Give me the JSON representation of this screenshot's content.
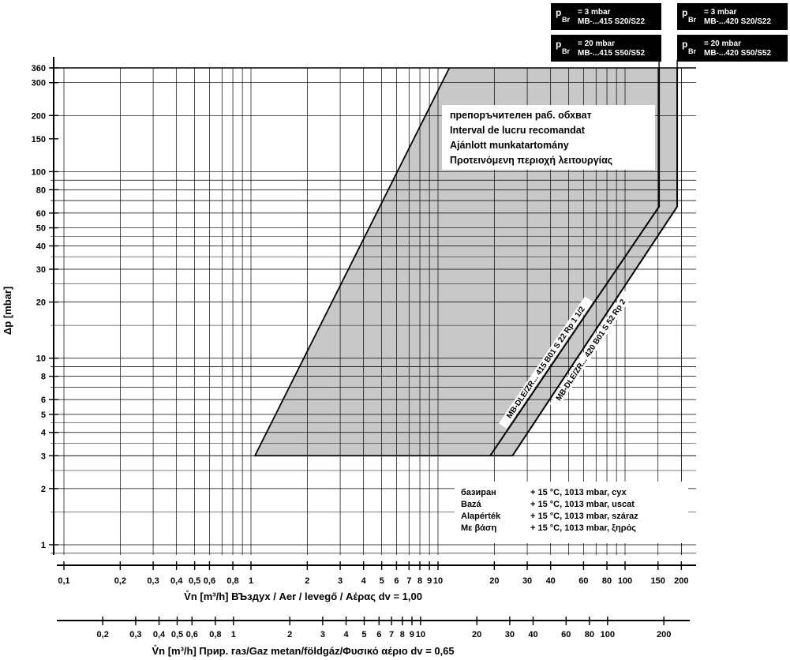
{
  "chart_data": {
    "type": "line",
    "x_scale": "log",
    "y_scale": "log",
    "grid": true,
    "ylabel": "Δp [mbar]",
    "xlabel_air": "V̊n [m³/h] ВЪздух / Aer / levegő / Αέρας dv = 1,00",
    "xlabel_gas": "V̊n [m³/h] Прир. газ/Gaz metan/földgáz/Φυσικό αέριο dv = 0,65",
    "xlim": [
      0.1,
      220
    ],
    "ylim": [
      0.85,
      380
    ],
    "y_ticks": [
      {
        "v": 1,
        "label": "1"
      },
      {
        "v": 2,
        "label": "2"
      },
      {
        "v": 3,
        "label": "3"
      },
      {
        "v": 4,
        "label": "4"
      },
      {
        "v": 5,
        "label": "5"
      },
      {
        "v": 6,
        "label": "6"
      },
      {
        "v": 8,
        "label": "8"
      },
      {
        "v": 10,
        "label": "10"
      },
      {
        "v": 20,
        "label": "20"
      },
      {
        "v": 30,
        "label": "30"
      },
      {
        "v": 40,
        "label": "40"
      },
      {
        "v": 50,
        "label": "50"
      },
      {
        "v": 60,
        "label": "60"
      },
      {
        "v": 80,
        "label": "80"
      },
      {
        "v": 100,
        "label": "100"
      },
      {
        "v": 150,
        "label": "150"
      },
      {
        "v": 200,
        "label": "200"
      },
      {
        "v": 300,
        "label": "300"
      },
      {
        "v": 360,
        "label": "360"
      }
    ],
    "x_ticks_air": [
      {
        "v": 0.1,
        "label": "0,1"
      },
      {
        "v": 0.2,
        "label": "0,2"
      },
      {
        "v": 0.3,
        "label": "0,3"
      },
      {
        "v": 0.4,
        "label": "0,4"
      },
      {
        "v": 0.5,
        "label": "0,5"
      },
      {
        "v": 0.6,
        "label": "0,6"
      },
      {
        "v": 0.8,
        "label": "0,8"
      },
      {
        "v": 1,
        "label": "1"
      },
      {
        "v": 2,
        "label": "2"
      },
      {
        "v": 3,
        "label": "3"
      },
      {
        "v": 4,
        "label": "4"
      },
      {
        "v": 5,
        "label": "5"
      },
      {
        "v": 6,
        "label": "6"
      },
      {
        "v": 7,
        "label": "7"
      },
      {
        "v": 8,
        "label": "8"
      },
      {
        "v": 9,
        "label": "9"
      },
      {
        "v": 10,
        "label": "10"
      },
      {
        "v": 20,
        "label": "20"
      },
      {
        "v": 30,
        "label": "30"
      },
      {
        "v": 40,
        "label": "40"
      },
      {
        "v": 60,
        "label": "60"
      },
      {
        "v": 80,
        "label": "80"
      },
      {
        "v": 100,
        "label": "100"
      },
      {
        "v": 150,
        "label": "150"
      },
      {
        "v": 200,
        "label": "200"
      }
    ],
    "x_ticks_gas": [
      {
        "v": 0.2,
        "label": "0,2"
      },
      {
        "v": 0.3,
        "label": "0,3"
      },
      {
        "v": 0.4,
        "label": "0,4"
      },
      {
        "v": 0.5,
        "label": "0,5"
      },
      {
        "v": 0.6,
        "label": "0,6"
      },
      {
        "v": 0.8,
        "label": "0,8"
      },
      {
        "v": 1,
        "label": "1"
      },
      {
        "v": 2,
        "label": "2"
      },
      {
        "v": 3,
        "label": "3"
      },
      {
        "v": 4,
        "label": "4"
      },
      {
        "v": 5,
        "label": "5"
      },
      {
        "v": 6,
        "label": "6"
      },
      {
        "v": 7,
        "label": "7"
      },
      {
        "v": 8,
        "label": "8"
      },
      {
        "v": 9,
        "label": "9"
      },
      {
        "v": 10,
        "label": "10"
      },
      {
        "v": 20,
        "label": "20"
      },
      {
        "v": 30,
        "label": "30"
      },
      {
        "v": 40,
        "label": "40"
      },
      {
        "v": 60,
        "label": "60"
      },
      {
        "v": 80,
        "label": "80"
      },
      {
        "v": 100,
        "label": "100"
      },
      {
        "v": 200,
        "label": "200"
      }
    ],
    "region": {
      "label_lines": [
        "препоръчителен раб. обхват",
        "Interval de lucru recomandat",
        "Ajánlott munkatartomány",
        "Προτεινόμενη περιοχή λειτουργίας"
      ],
      "points": [
        {
          "x": 1.05,
          "y": 3
        },
        {
          "x": 25,
          "y": 3
        },
        {
          "x": 190,
          "y": 65
        },
        {
          "x": 190,
          "y": 360
        },
        {
          "x": 11.5,
          "y": 360
        }
      ],
      "fill": "#c8c8c8"
    },
    "series": [
      {
        "name": "MB-DLE/ZR... 415 B01 S 22 Rp 1 1/2",
        "points": [
          {
            "x": 19,
            "y": 3
          },
          {
            "x": 152,
            "y": 65
          },
          {
            "x": 152,
            "y": 360
          }
        ],
        "label_at": 0.36
      },
      {
        "name": "MB-DLE/ZR... 420 B01 S 52 Rp 2",
        "points": [
          {
            "x": 25,
            "y": 3
          },
          {
            "x": 190,
            "y": 65
          },
          {
            "x": 190,
            "y": 360
          }
        ],
        "label_at": 0.44
      }
    ],
    "pbr_boxes": [
      {
        "lines": [
          {
            "p": "p",
            "sub": "Br",
            "eq": "= 3 mbar",
            "model": "MB-...415 S20/S22"
          },
          {
            "p": "p",
            "sub": "Br",
            "eq": "= 20 mbar",
            "model": "MB-...415 S50/S52"
          }
        ],
        "x": 152
      },
      {
        "lines": [
          {
            "p": "p",
            "sub": "Br",
            "eq": "= 3 mbar",
            "model": "MB-...420 S20/S22"
          },
          {
            "p": "p",
            "sub": "Br",
            "eq": "= 20 mbar",
            "model": "MB-...420 S50/S52"
          }
        ],
        "x": 190
      }
    ],
    "reference_conditions": [
      {
        "label": "базиран",
        "value": "+ 15 °C, 1013 mbar, сух"
      },
      {
        "label": "Bazá",
        "value": "+ 15 °C, 1013 mbar, uscat"
      },
      {
        "label": "Alapérték",
        "value": "+ 15 °C, 1013 mbar, száraz"
      },
      {
        "label": "Με βάση",
        "value": "+ 15 °C, 1013 mbar, ξηρός"
      }
    ],
    "colors": {
      "line": "#000000",
      "grid": "#000000",
      "region": "#c8c8c8",
      "box": "#000000"
    }
  }
}
